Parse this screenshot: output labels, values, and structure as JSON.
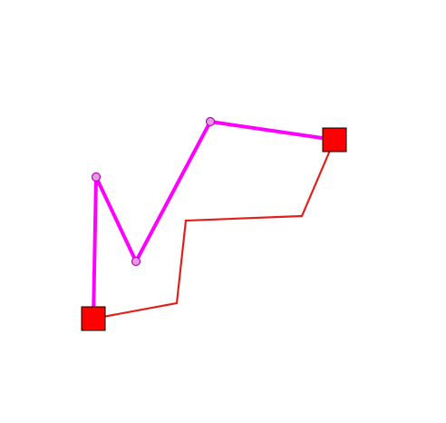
{
  "colors": {
    "background": "#ffffff",
    "editable_path": "#ff00ff",
    "editable_vertex_fill": "#e39ae3",
    "editable_vertex_stroke": "#c000c0",
    "reference_path": "#e0201a",
    "endpoint_fill": "#ff0000",
    "endpoint_stroke": "#000000"
  },
  "icons": {
    "endpoint": "red-square-handle",
    "vertex": "circle-vertex-handle"
  }
}
